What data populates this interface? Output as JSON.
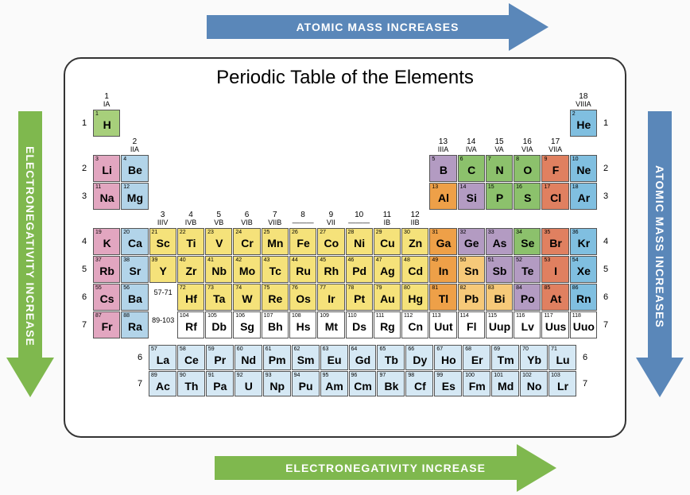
{
  "title": "Periodic Table of the Elements",
  "arrows": {
    "top": {
      "label": "ATOMIC MASS INCREASES",
      "color": "#5a87b9"
    },
    "right": {
      "label": "ATOMIC MASS INCREASES",
      "color": "#5a87b9"
    },
    "bottom": {
      "label": "ELECTRONEGATIVITY INCREASE",
      "color": "#7fb84e"
    },
    "left": {
      "label": "ELECTRONEGATIVITY INCREASE",
      "color": "#7fb84e"
    }
  },
  "colors": {
    "green": "#a7cf7b",
    "pink": "#e2a6c0",
    "lblue": "#b2d4e9",
    "yellow": "#f5e27a",
    "orange": "#eea048",
    "purple": "#b39bc2",
    "sgreen": "#8cc16c",
    "red": "#e08060",
    "blue": "#80bfe0",
    "pale": "#d5e8f4",
    "white": "#ffffff",
    "peach": "#f6c979"
  },
  "groups": [
    {
      "n": "1",
      "r": "IA"
    },
    {
      "n": "2",
      "r": "IIA"
    },
    {
      "n": "3",
      "r": "IIIV"
    },
    {
      "n": "4",
      "r": "IVB"
    },
    {
      "n": "5",
      "r": "VB"
    },
    {
      "n": "6",
      "r": "VIB"
    },
    {
      "n": "7",
      "r": "VIIB"
    },
    {
      "n": "8",
      "r": "———"
    },
    {
      "n": "9",
      "r": "VII"
    },
    {
      "n": "10",
      "r": "———"
    },
    {
      "n": "11",
      "r": "IB"
    },
    {
      "n": "12",
      "r": "IIB"
    },
    {
      "n": "13",
      "r": "IIIA"
    },
    {
      "n": "14",
      "r": "IVA"
    },
    {
      "n": "15",
      "r": "VA"
    },
    {
      "n": "16",
      "r": "VIA"
    },
    {
      "n": "17",
      "r": "VIIA"
    },
    {
      "n": "18",
      "r": "VIIIA"
    }
  ],
  "periods": [
    "1",
    "2",
    "3",
    "4",
    "5",
    "6",
    "7"
  ],
  "elements": [
    {
      "z": 1,
      "s": "H",
      "p": 1,
      "g": 1,
      "c": "green"
    },
    {
      "z": 2,
      "s": "He",
      "p": 1,
      "g": 18,
      "c": "blue"
    },
    {
      "z": 3,
      "s": "Li",
      "p": 2,
      "g": 1,
      "c": "pink"
    },
    {
      "z": 4,
      "s": "Be",
      "p": 2,
      "g": 2,
      "c": "lblue"
    },
    {
      "z": 5,
      "s": "B",
      "p": 2,
      "g": 13,
      "c": "purple"
    },
    {
      "z": 6,
      "s": "C",
      "p": 2,
      "g": 14,
      "c": "sgreen"
    },
    {
      "z": 7,
      "s": "N",
      "p": 2,
      "g": 15,
      "c": "sgreen"
    },
    {
      "z": 8,
      "s": "O",
      "p": 2,
      "g": 16,
      "c": "sgreen"
    },
    {
      "z": 9,
      "s": "F",
      "p": 2,
      "g": 17,
      "c": "red"
    },
    {
      "z": 10,
      "s": "Ne",
      "p": 2,
      "g": 18,
      "c": "blue"
    },
    {
      "z": 11,
      "s": "Na",
      "p": 3,
      "g": 1,
      "c": "pink"
    },
    {
      "z": 12,
      "s": "Mg",
      "p": 3,
      "g": 2,
      "c": "lblue"
    },
    {
      "z": 13,
      "s": "Al",
      "p": 3,
      "g": 13,
      "c": "orange"
    },
    {
      "z": 14,
      "s": "Si",
      "p": 3,
      "g": 14,
      "c": "purple"
    },
    {
      "z": 15,
      "s": "P",
      "p": 3,
      "g": 15,
      "c": "sgreen"
    },
    {
      "z": 16,
      "s": "S",
      "p": 3,
      "g": 16,
      "c": "sgreen"
    },
    {
      "z": 17,
      "s": "Cl",
      "p": 3,
      "g": 17,
      "c": "red"
    },
    {
      "z": 18,
      "s": "Ar",
      "p": 3,
      "g": 18,
      "c": "blue"
    },
    {
      "z": 19,
      "s": "K",
      "p": 4,
      "g": 1,
      "c": "pink"
    },
    {
      "z": 20,
      "s": "Ca",
      "p": 4,
      "g": 2,
      "c": "lblue"
    },
    {
      "z": 21,
      "s": "Sc",
      "p": 4,
      "g": 3,
      "c": "yellow"
    },
    {
      "z": 22,
      "s": "Ti",
      "p": 4,
      "g": 4,
      "c": "yellow"
    },
    {
      "z": 23,
      "s": "V",
      "p": 4,
      "g": 5,
      "c": "yellow"
    },
    {
      "z": 24,
      "s": "Cr",
      "p": 4,
      "g": 6,
      "c": "yellow"
    },
    {
      "z": 25,
      "s": "Mn",
      "p": 4,
      "g": 7,
      "c": "yellow"
    },
    {
      "z": 26,
      "s": "Fe",
      "p": 4,
      "g": 8,
      "c": "yellow"
    },
    {
      "z": 27,
      "s": "Co",
      "p": 4,
      "g": 9,
      "c": "yellow"
    },
    {
      "z": 28,
      "s": "Ni",
      "p": 4,
      "g": 10,
      "c": "yellow"
    },
    {
      "z": 29,
      "s": "Cu",
      "p": 4,
      "g": 11,
      "c": "yellow"
    },
    {
      "z": 30,
      "s": "Zn",
      "p": 4,
      "g": 12,
      "c": "yellow"
    },
    {
      "z": 31,
      "s": "Ga",
      "p": 4,
      "g": 13,
      "c": "orange"
    },
    {
      "z": 32,
      "s": "Ge",
      "p": 4,
      "g": 14,
      "c": "purple"
    },
    {
      "z": 33,
      "s": "As",
      "p": 4,
      "g": 15,
      "c": "purple"
    },
    {
      "z": 34,
      "s": "Se",
      "p": 4,
      "g": 16,
      "c": "sgreen"
    },
    {
      "z": 35,
      "s": "Br",
      "p": 4,
      "g": 17,
      "c": "red"
    },
    {
      "z": 36,
      "s": "Kr",
      "p": 4,
      "g": 18,
      "c": "blue"
    },
    {
      "z": 37,
      "s": "Rb",
      "p": 5,
      "g": 1,
      "c": "pink"
    },
    {
      "z": 38,
      "s": "Sr",
      "p": 5,
      "g": 2,
      "c": "lblue"
    },
    {
      "z": 39,
      "s": "Y",
      "p": 5,
      "g": 3,
      "c": "yellow"
    },
    {
      "z": 40,
      "s": "Zr",
      "p": 5,
      "g": 4,
      "c": "yellow"
    },
    {
      "z": 41,
      "s": "Nb",
      "p": 5,
      "g": 5,
      "c": "yellow"
    },
    {
      "z": 42,
      "s": "Mo",
      "p": 5,
      "g": 6,
      "c": "yellow"
    },
    {
      "z": 43,
      "s": "Tc",
      "p": 5,
      "g": 7,
      "c": "yellow"
    },
    {
      "z": 44,
      "s": "Ru",
      "p": 5,
      "g": 8,
      "c": "yellow"
    },
    {
      "z": 45,
      "s": "Rh",
      "p": 5,
      "g": 9,
      "c": "yellow"
    },
    {
      "z": 46,
      "s": "Pd",
      "p": 5,
      "g": 10,
      "c": "yellow"
    },
    {
      "z": 47,
      "s": "Ag",
      "p": 5,
      "g": 11,
      "c": "yellow"
    },
    {
      "z": 48,
      "s": "Cd",
      "p": 5,
      "g": 12,
      "c": "yellow"
    },
    {
      "z": 49,
      "s": "In",
      "p": 5,
      "g": 13,
      "c": "orange"
    },
    {
      "z": 50,
      "s": "Sn",
      "p": 5,
      "g": 14,
      "c": "peach"
    },
    {
      "z": 51,
      "s": "Sb",
      "p": 5,
      "g": 15,
      "c": "purple"
    },
    {
      "z": 52,
      "s": "Te",
      "p": 5,
      "g": 16,
      "c": "purple"
    },
    {
      "z": 53,
      "s": "I",
      "p": 5,
      "g": 17,
      "c": "red"
    },
    {
      "z": 54,
      "s": "Xe",
      "p": 5,
      "g": 18,
      "c": "blue"
    },
    {
      "z": 55,
      "s": "Cs",
      "p": 6,
      "g": 1,
      "c": "pink"
    },
    {
      "z": 56,
      "s": "Ba",
      "p": 6,
      "g": 2,
      "c": "lblue"
    },
    {
      "z": "57-71",
      "s": "",
      "p": 6,
      "g": 3,
      "c": "white",
      "briq": true
    },
    {
      "z": 72,
      "s": "Hf",
      "p": 6,
      "g": 4,
      "c": "yellow"
    },
    {
      "z": 73,
      "s": "Ta",
      "p": 6,
      "g": 5,
      "c": "yellow"
    },
    {
      "z": 74,
      "s": "W",
      "p": 6,
      "g": 6,
      "c": "yellow"
    },
    {
      "z": 75,
      "s": "Re",
      "p": 6,
      "g": 7,
      "c": "yellow"
    },
    {
      "z": 76,
      "s": "Os",
      "p": 6,
      "g": 8,
      "c": "yellow"
    },
    {
      "z": 77,
      "s": "Ir",
      "p": 6,
      "g": 9,
      "c": "yellow"
    },
    {
      "z": 78,
      "s": "Pt",
      "p": 6,
      "g": 10,
      "c": "yellow"
    },
    {
      "z": 79,
      "s": "Au",
      "p": 6,
      "g": 11,
      "c": "yellow"
    },
    {
      "z": 80,
      "s": "Hg",
      "p": 6,
      "g": 12,
      "c": "yellow"
    },
    {
      "z": 81,
      "s": "Tl",
      "p": 6,
      "g": 13,
      "c": "orange"
    },
    {
      "z": 82,
      "s": "Pb",
      "p": 6,
      "g": 14,
      "c": "peach"
    },
    {
      "z": 83,
      "s": "Bi",
      "p": 6,
      "g": 15,
      "c": "peach"
    },
    {
      "z": 84,
      "s": "Po",
      "p": 6,
      "g": 16,
      "c": "purple"
    },
    {
      "z": 85,
      "s": "At",
      "p": 6,
      "g": 17,
      "c": "red"
    },
    {
      "z": 86,
      "s": "Rn",
      "p": 6,
      "g": 18,
      "c": "blue"
    },
    {
      "z": 87,
      "s": "Fr",
      "p": 7,
      "g": 1,
      "c": "pink"
    },
    {
      "z": 88,
      "s": "Ra",
      "p": 7,
      "g": 2,
      "c": "lblue"
    },
    {
      "z": "89-103",
      "s": "",
      "p": 7,
      "g": 3,
      "c": "white",
      "briq": true
    },
    {
      "z": 104,
      "s": "Rf",
      "p": 7,
      "g": 4,
      "c": "white"
    },
    {
      "z": 105,
      "s": "Db",
      "p": 7,
      "g": 5,
      "c": "white"
    },
    {
      "z": 106,
      "s": "Sg",
      "p": 7,
      "g": 6,
      "c": "white"
    },
    {
      "z": 107,
      "s": "Bh",
      "p": 7,
      "g": 7,
      "c": "white"
    },
    {
      "z": 108,
      "s": "Hs",
      "p": 7,
      "g": 8,
      "c": "white"
    },
    {
      "z": 109,
      "s": "Mt",
      "p": 7,
      "g": 9,
      "c": "white"
    },
    {
      "z": 110,
      "s": "Ds",
      "p": 7,
      "g": 10,
      "c": "white"
    },
    {
      "z": 111,
      "s": "Rg",
      "p": 7,
      "g": 11,
      "c": "white"
    },
    {
      "z": 112,
      "s": "Cn",
      "p": 7,
      "g": 12,
      "c": "white"
    },
    {
      "z": 113,
      "s": "Uut",
      "p": 7,
      "g": 13,
      "c": "white"
    },
    {
      "z": 114,
      "s": "Fl",
      "p": 7,
      "g": 14,
      "c": "white"
    },
    {
      "z": 115,
      "s": "Uup",
      "p": 7,
      "g": 15,
      "c": "white"
    },
    {
      "z": 116,
      "s": "Lv",
      "p": 7,
      "g": 16,
      "c": "white"
    },
    {
      "z": 117,
      "s": "Uus",
      "p": 7,
      "g": 17,
      "c": "white"
    },
    {
      "z": 118,
      "s": "Uuo",
      "p": 7,
      "g": 18,
      "c": "white"
    }
  ],
  "fblock": {
    "rows": [
      "6",
      "7"
    ],
    "la": [
      {
        "z": 57,
        "s": "La"
      },
      {
        "z": 58,
        "s": "Ce"
      },
      {
        "z": 59,
        "s": "Pr"
      },
      {
        "z": 60,
        "s": "Nd"
      },
      {
        "z": 61,
        "s": "Pm"
      },
      {
        "z": 62,
        "s": "Sm"
      },
      {
        "z": 63,
        "s": "Eu"
      },
      {
        "z": 64,
        "s": "Gd"
      },
      {
        "z": 65,
        "s": "Tb"
      },
      {
        "z": 66,
        "s": "Dy"
      },
      {
        "z": 67,
        "s": "Ho"
      },
      {
        "z": 68,
        "s": "Er"
      },
      {
        "z": 69,
        "s": "Tm"
      },
      {
        "z": 70,
        "s": "Yb"
      },
      {
        "z": 71,
        "s": "Lu"
      }
    ],
    "ac": [
      {
        "z": 89,
        "s": "Ac"
      },
      {
        "z": 90,
        "s": "Th"
      },
      {
        "z": 91,
        "s": "Pa"
      },
      {
        "z": 92,
        "s": "U"
      },
      {
        "z": 93,
        "s": "Np"
      },
      {
        "z": 94,
        "s": "Pu"
      },
      {
        "z": 95,
        "s": "Am"
      },
      {
        "z": 96,
        "s": "Cm"
      },
      {
        "z": 97,
        "s": "Bk"
      },
      {
        "z": 98,
        "s": "Cf"
      },
      {
        "z": 99,
        "s": "Es"
      },
      {
        "z": 100,
        "s": "Fm"
      },
      {
        "z": 101,
        "s": "Md"
      },
      {
        "z": 102,
        "s": "No"
      },
      {
        "z": 103,
        "s": "Lr"
      }
    ],
    "color": "pale"
  }
}
